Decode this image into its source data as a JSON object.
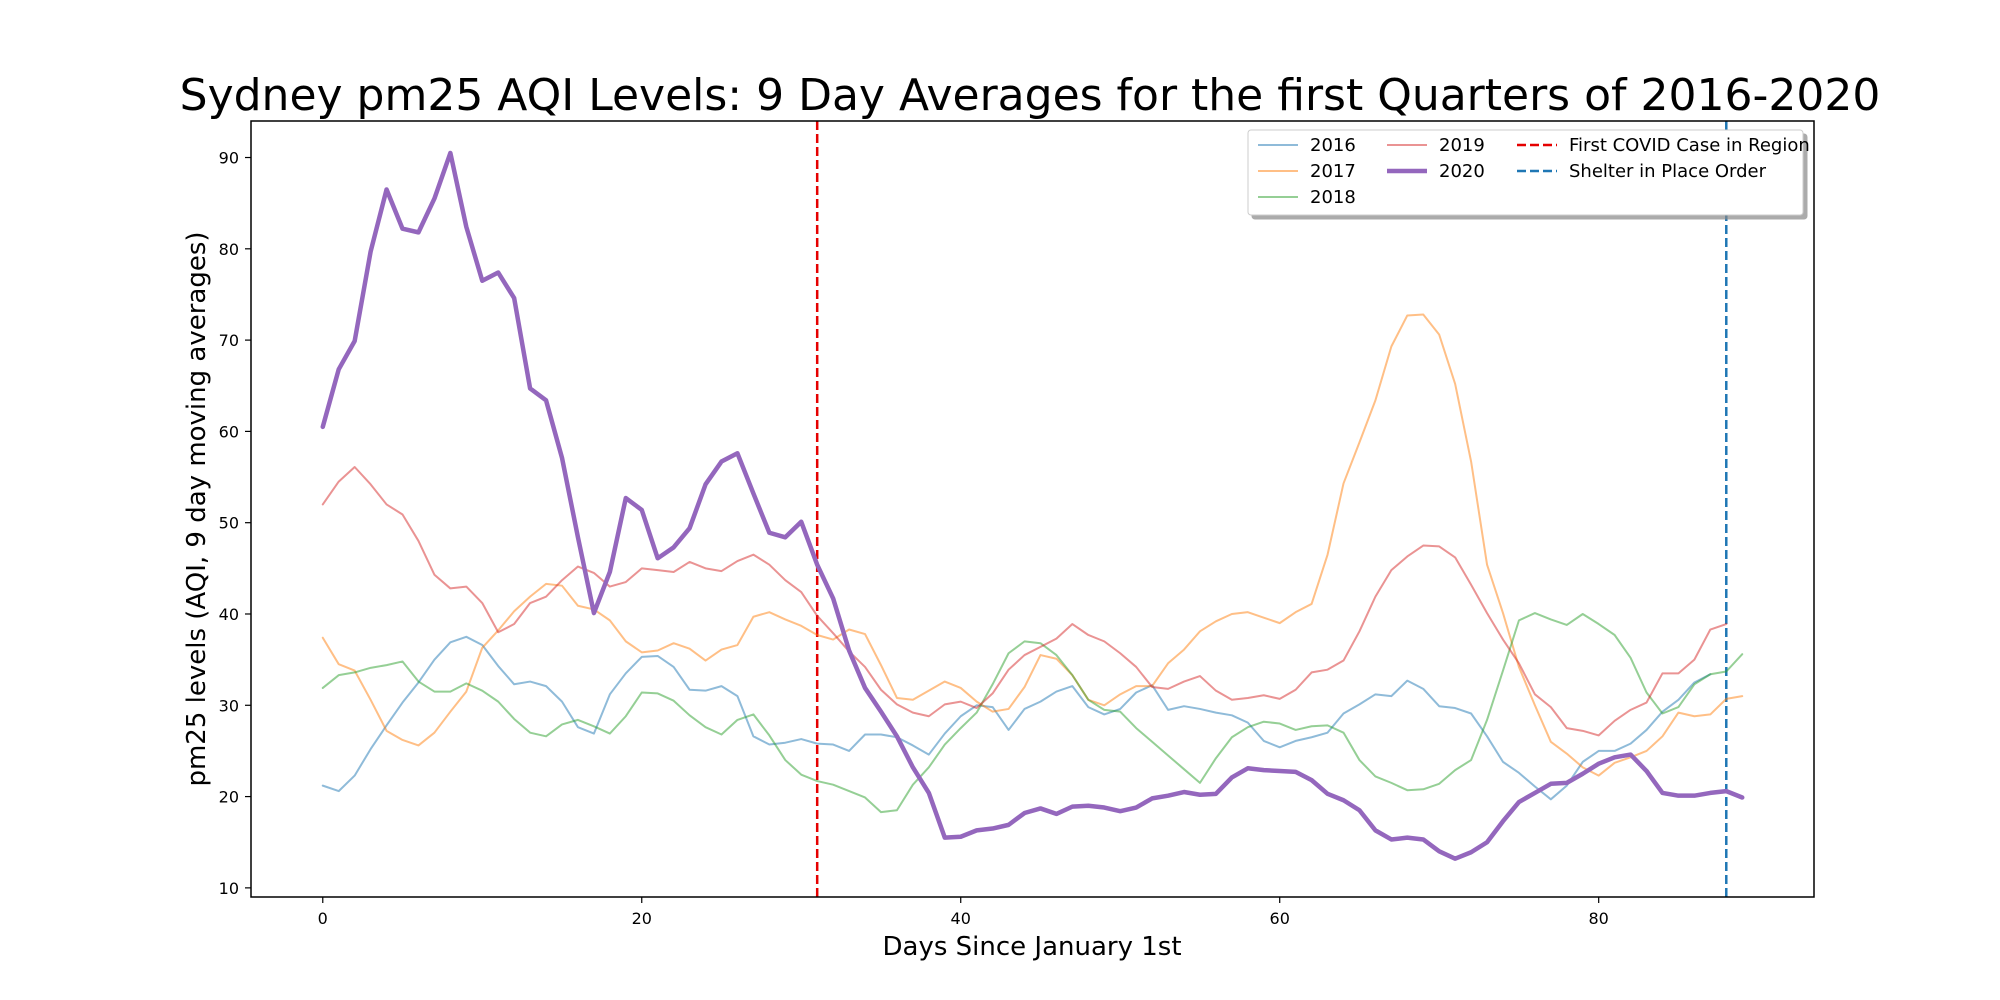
{
  "chart_data": {
    "type": "line",
    "title": "Sydney pm25 AQI Levels: 9 Day Averages for the first Quarters of 2016-2020",
    "xlabel": "Days Since January 1st",
    "ylabel": "pm25 levels (AQI, 9 day moving averages)",
    "xlim": [
      -4.5,
      93.5
    ],
    "ylim": [
      9,
      94
    ],
    "xticks": [
      0,
      20,
      40,
      60,
      80
    ],
    "yticks": [
      10,
      20,
      30,
      40,
      50,
      60,
      70,
      80,
      90
    ],
    "grid": false,
    "legend_position": "top-right",
    "series": [
      {
        "name": "2016",
        "color": "#1f77b4",
        "opacity": 0.5,
        "width": 2,
        "values": [
          21.2,
          20.6,
          22.3,
          25.2,
          27.8,
          30.3,
          32.5,
          35.0,
          36.9,
          37.5,
          36.6,
          34.3,
          32.3,
          32.6,
          32.1,
          30.4,
          27.6,
          26.9,
          31.2,
          33.5,
          35.3,
          35.4,
          34.2,
          31.7,
          31.6,
          32.1,
          31.0,
          26.6,
          25.7,
          25.9,
          26.3,
          25.8,
          25.7,
          25.0,
          26.8,
          26.8,
          26.5,
          25.6,
          24.6,
          26.9,
          28.8,
          30.0,
          29.8,
          27.3,
          29.6,
          30.4,
          31.5,
          32.1,
          29.8,
          29.0,
          29.6,
          31.4,
          32.2,
          29.5,
          29.9,
          29.6,
          29.2,
          28.9,
          28.1,
          26.1,
          25.4,
          26.1,
          26.5,
          27.0,
          29.1,
          30.1,
          31.2,
          31.0,
          32.7,
          31.8,
          29.9,
          29.7,
          29.1,
          26.6,
          23.8,
          22.6,
          21.1,
          19.7,
          21.2,
          23.8,
          25.0,
          25.0,
          25.8,
          27.3,
          29.3,
          30.6,
          32.5,
          33.4
        ]
      },
      {
        "name": "2017",
        "color": "#ff7f0e",
        "opacity": 0.5,
        "width": 2,
        "values": [
          37.4,
          34.5,
          33.8,
          30.6,
          27.2,
          26.2,
          25.6,
          27.0,
          29.3,
          31.5,
          36.3,
          38.2,
          40.3,
          41.9,
          43.3,
          43.1,
          40.9,
          40.5,
          39.3,
          37.0,
          35.8,
          36.0,
          36.8,
          36.2,
          34.9,
          36.1,
          36.6,
          39.7,
          40.2,
          39.4,
          38.7,
          37.7,
          37.2,
          38.3,
          37.8,
          34.4,
          30.8,
          30.6,
          31.6,
          32.6,
          31.9,
          30.4,
          29.3,
          29.6,
          32.0,
          35.5,
          35.1,
          33.3,
          30.6,
          30.0,
          31.2,
          32.1,
          32.1,
          34.6,
          36.1,
          38.1,
          39.2,
          40.0,
          40.2,
          39.6,
          39.0,
          40.2,
          41.1,
          46.5,
          54.3,
          58.8,
          63.4,
          69.3,
          72.7,
          72.8,
          70.6,
          65.2,
          56.7,
          45.4,
          40.1,
          34.2,
          30.0,
          26.0,
          24.7,
          23.2,
          22.3,
          23.7,
          24.3,
          25.0,
          26.6,
          29.2,
          28.8,
          29.0,
          30.7,
          31.0
        ]
      },
      {
        "name": "2018",
        "color": "#2ca02c",
        "opacity": 0.5,
        "width": 2,
        "values": [
          31.9,
          33.3,
          33.6,
          34.1,
          34.4,
          34.8,
          32.6,
          31.5,
          31.5,
          32.4,
          31.6,
          30.4,
          28.5,
          27.0,
          26.6,
          27.9,
          28.4,
          27.7,
          26.9,
          28.8,
          31.4,
          31.3,
          30.5,
          28.9,
          27.6,
          26.8,
          28.4,
          29.0,
          26.7,
          24.0,
          22.4,
          21.7,
          21.3,
          20.6,
          19.9,
          18.3,
          18.5,
          21.3,
          23.2,
          25.7,
          27.5,
          29.2,
          32.3,
          35.7,
          37.0,
          36.8,
          35.5,
          33.3,
          30.6,
          29.5,
          29.3,
          27.5,
          26.0,
          24.5,
          23.0,
          21.5,
          24.2,
          26.5,
          27.6,
          28.2,
          28.0,
          27.3,
          27.7,
          27.8,
          27.0,
          24.0,
          22.2,
          21.5,
          20.7,
          20.8,
          21.4,
          22.9,
          24.0,
          28.4,
          33.8,
          39.3,
          40.1,
          39.4,
          38.8,
          40.0,
          38.9,
          37.7,
          35.2,
          31.4,
          29.1,
          29.8,
          32.3,
          33.4,
          33.7,
          35.6
        ]
      },
      {
        "name": "2019",
        "color": "#d62728",
        "opacity": 0.5,
        "width": 2,
        "values": [
          52.0,
          54.5,
          56.1,
          54.2,
          52.0,
          50.9,
          48.0,
          44.3,
          42.8,
          43.0,
          41.2,
          38.0,
          38.9,
          41.2,
          41.9,
          43.7,
          45.2,
          44.5,
          43.0,
          43.5,
          45.0,
          44.8,
          44.6,
          45.7,
          45.0,
          44.7,
          45.8,
          46.5,
          45.4,
          43.7,
          42.4,
          39.8,
          37.9,
          35.9,
          34.2,
          31.7,
          30.1,
          29.2,
          28.8,
          30.1,
          30.4,
          29.7,
          31.3,
          33.9,
          35.5,
          36.4,
          37.3,
          38.9,
          37.7,
          37.0,
          35.7,
          34.2,
          32.0,
          31.8,
          32.6,
          33.2,
          31.6,
          30.6,
          30.8,
          31.1,
          30.7,
          31.7,
          33.6,
          33.9,
          34.9,
          38.1,
          41.9,
          44.8,
          46.3,
          47.5,
          47.4,
          46.2,
          43.2,
          40.1,
          37.2,
          34.6,
          31.2,
          29.8,
          27.5,
          27.2,
          26.7,
          28.3,
          29.5,
          30.3,
          33.5,
          33.5,
          35.0,
          38.3,
          38.9
        ]
      },
      {
        "name": "2020",
        "color": "#9467bd",
        "opacity": 1,
        "width": 4.5,
        "values": [
          60.5,
          66.8,
          69.9,
          79.7,
          86.5,
          82.2,
          81.8,
          85.5,
          90.5,
          82.4,
          76.5,
          77.4,
          74.6,
          64.7,
          63.4,
          57.1,
          48.4,
          40.1,
          44.6,
          52.7,
          51.4,
          46.1,
          47.3,
          49.4,
          54.2,
          56.7,
          57.6,
          53.2,
          48.9,
          48.4,
          50.1,
          45.4,
          41.7,
          36.0,
          31.9,
          29.3,
          26.6,
          23.2,
          20.4,
          15.5,
          15.6,
          16.3,
          16.5,
          16.9,
          18.2,
          18.7,
          18.1,
          18.9,
          19.0,
          18.8,
          18.4,
          18.8,
          19.8,
          20.1,
          20.5,
          20.2,
          20.3,
          22.1,
          23.1,
          22.9,
          22.8,
          22.7,
          21.8,
          20.3,
          19.6,
          18.5,
          16.3,
          15.3,
          15.5,
          15.3,
          14.0,
          13.2,
          13.9,
          15.0,
          17.3,
          19.4,
          20.4,
          21.4,
          21.5,
          22.5,
          23.6,
          24.3,
          24.6,
          22.8,
          20.4,
          20.1,
          20.1,
          20.4,
          20.6,
          19.9
        ]
      }
    ],
    "vlines": [
      {
        "name": "First COVID Case in Region",
        "x": 31,
        "color": "#e50000"
      },
      {
        "name": "Shelter in Place Order",
        "x": 88,
        "color": "#1f77b4"
      }
    ]
  }
}
